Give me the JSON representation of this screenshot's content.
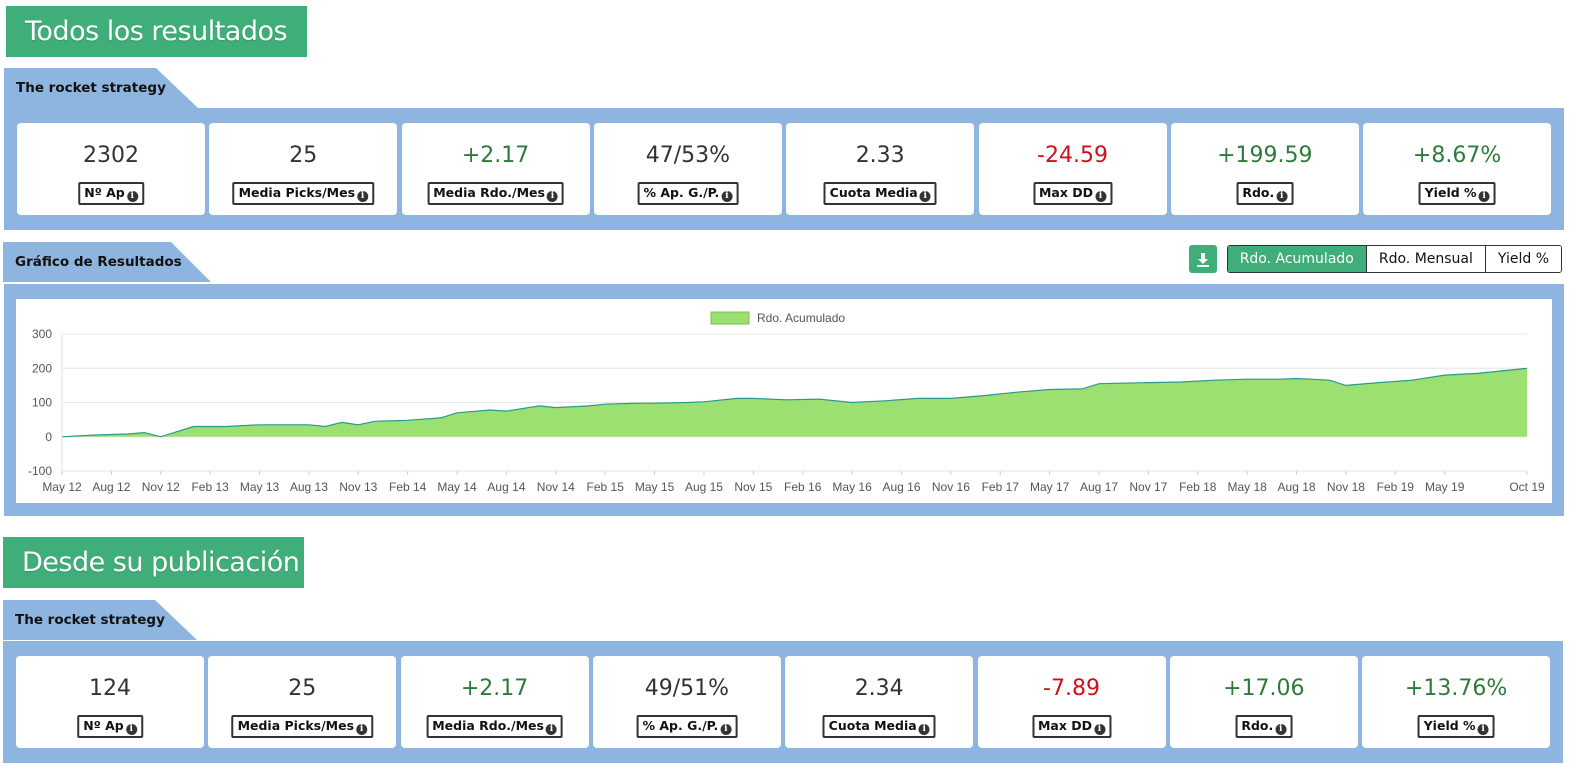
{
  "colors": {
    "accent": "#3fae78",
    "panel": "#8eb4e0",
    "positive": "#2f7a3b",
    "negative": "#d0101a",
    "area_fill": "#9be070",
    "area_line": "#2a9a8c"
  },
  "section1": {
    "title": "Todos los resultados",
    "strategy_label": "The rocket strategy",
    "stats": [
      {
        "value": "2302",
        "label": "Nº Ap",
        "tone": "neutral"
      },
      {
        "value": "25",
        "label": "Media Picks/Mes",
        "tone": "neutral"
      },
      {
        "value": "+2.17",
        "label": "Media Rdo./Mes",
        "tone": "positive"
      },
      {
        "value": "47/53%",
        "label": "% Ap. G./P.",
        "tone": "neutral"
      },
      {
        "value": "2.33",
        "label": "Cuota Media",
        "tone": "neutral"
      },
      {
        "value": "-24.59",
        "label": "Max DD",
        "tone": "negative"
      },
      {
        "value": "+199.59",
        "label": "Rdo.",
        "tone": "positive"
      },
      {
        "value": "+8.67%",
        "label": "Yield %",
        "tone": "positive"
      }
    ]
  },
  "chart_section": {
    "title": "Gráfico de Resultados",
    "download_icon": "download-icon",
    "buttons": [
      {
        "label": "Rdo. Acumulado",
        "active": true
      },
      {
        "label": "Rdo. Mensual",
        "active": false
      },
      {
        "label": "Yield %",
        "active": false
      }
    ]
  },
  "chart_data": {
    "type": "area",
    "legend": "Rdo. Acumulado",
    "legend_position": "top",
    "ylim": [
      -100,
      300
    ],
    "yticks": [
      "300",
      "200",
      "100",
      "0",
      "-100"
    ],
    "ytick_values": [
      300,
      200,
      100,
      0,
      -100
    ],
    "grid": true,
    "xtick_labels": [
      "May 12",
      "Aug 12",
      "Nov 12",
      "Feb 13",
      "May 13",
      "Aug 13",
      "Nov 13",
      "Feb 14",
      "May 14",
      "Aug 14",
      "Nov 14",
      "Feb 15",
      "May 15",
      "Aug 15",
      "Nov 15",
      "Feb 16",
      "May 16",
      "Aug 16",
      "Nov 16",
      "Feb 17",
      "May 17",
      "Aug 17",
      "Nov 17",
      "Feb 18",
      "May 18",
      "Aug 18",
      "Nov 18",
      "Feb 19",
      "May 19",
      "Oct 19"
    ],
    "x": [
      "May 12",
      "Jul 12",
      "Sep 12",
      "Oct 12",
      "Nov 12",
      "Dec 12",
      "Jan 13",
      "Mar 13",
      "May 13",
      "Aug 13",
      "Sep 13",
      "Oct 13",
      "Nov 13",
      "Dec 13",
      "Feb 14",
      "Apr 14",
      "May 14",
      "Jul 14",
      "Aug 14",
      "Oct 14",
      "Nov 14",
      "Jan 15",
      "Feb 15",
      "Apr 15",
      "May 15",
      "Jul 15",
      "Aug 15",
      "Oct 15",
      "Nov 15",
      "Jan 16",
      "Mar 16",
      "May 16",
      "Jul 16",
      "Sep 16",
      "Nov 16",
      "Jan 17",
      "Mar 17",
      "May 17",
      "Jul 17",
      "Aug 17",
      "Nov 17",
      "Jan 18",
      "Mar 18",
      "May 18",
      "Jul 18",
      "Aug 18",
      "Oct 18",
      "Nov 18",
      "Jan 19",
      "Mar 19",
      "May 19",
      "Jul 19",
      "Oct 19"
    ],
    "values": [
      0,
      5,
      8,
      12,
      0,
      15,
      30,
      30,
      35,
      35,
      30,
      42,
      35,
      45,
      48,
      55,
      70,
      78,
      75,
      90,
      85,
      90,
      95,
      98,
      98,
      100,
      102,
      112,
      112,
      108,
      110,
      100,
      105,
      112,
      112,
      120,
      130,
      138,
      140,
      155,
      158,
      160,
      165,
      168,
      168,
      170,
      165,
      150,
      158,
      165,
      180,
      185,
      200
    ]
  },
  "section2": {
    "title": "Desde su publicación",
    "strategy_label": "The rocket strategy",
    "stats": [
      {
        "value": "124",
        "label": "Nº Ap",
        "tone": "neutral"
      },
      {
        "value": "25",
        "label": "Media Picks/Mes",
        "tone": "neutral"
      },
      {
        "value": "+2.17",
        "label": "Media Rdo./Mes",
        "tone": "positive"
      },
      {
        "value": "49/51%",
        "label": "% Ap. G./P.",
        "tone": "neutral"
      },
      {
        "value": "2.34",
        "label": "Cuota Media",
        "tone": "neutral"
      },
      {
        "value": "-7.89",
        "label": "Max DD",
        "tone": "negative"
      },
      {
        "value": "+17.06",
        "label": "Rdo.",
        "tone": "positive"
      },
      {
        "value": "+13.76%",
        "label": "Yield %",
        "tone": "positive"
      }
    ]
  }
}
